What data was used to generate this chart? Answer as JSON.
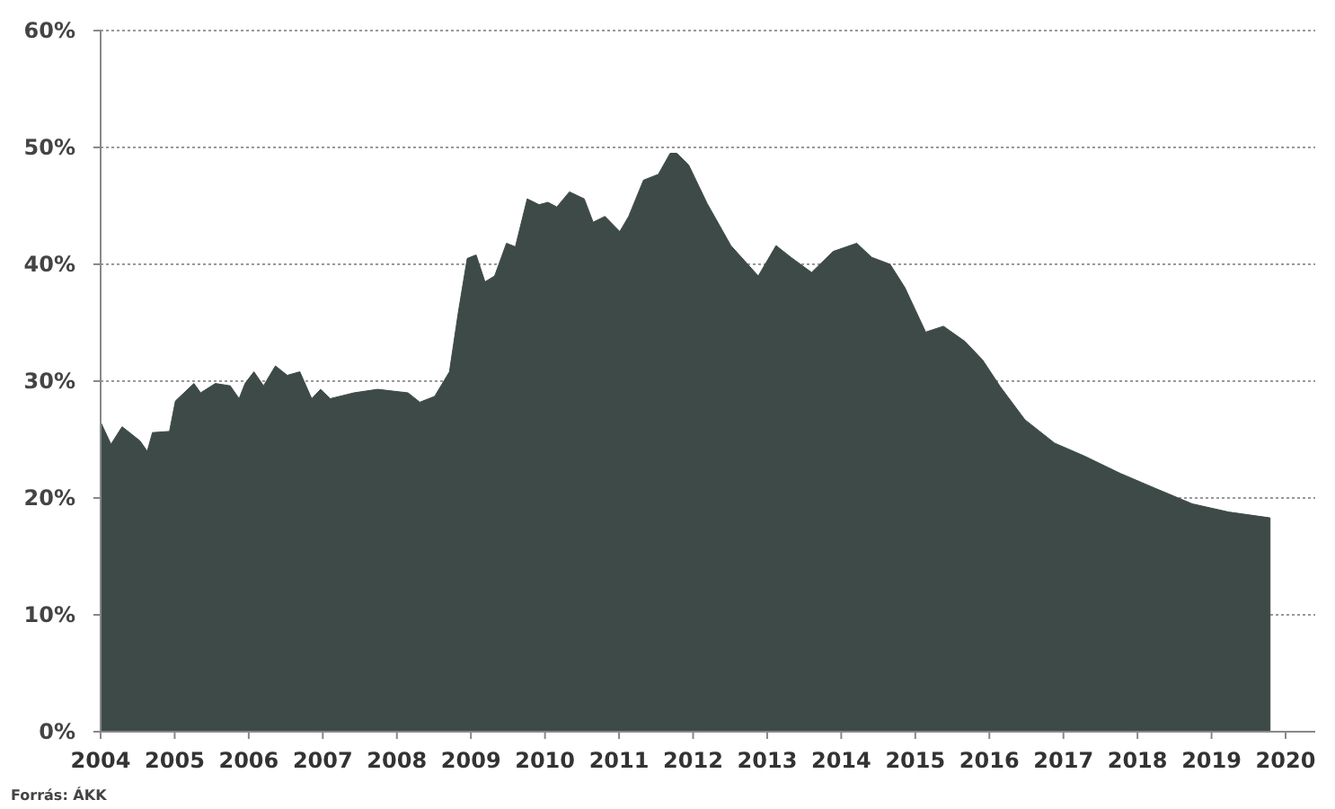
{
  "chart_data": {
    "type": "area",
    "x": [
      2004.0,
      2004.14,
      2004.29,
      2004.53,
      2004.63,
      2004.7,
      2004.93,
      2005.01,
      2005.26,
      2005.35,
      2005.55,
      2005.75,
      2005.87,
      2005.95,
      2006.07,
      2006.2,
      2006.36,
      2006.52,
      2006.69,
      2006.85,
      2006.97,
      2007.1,
      2007.42,
      2007.74,
      2008.15,
      2008.31,
      2008.51,
      2008.71,
      2008.83,
      2008.95,
      2009.07,
      2009.19,
      2009.32,
      2009.48,
      2009.6,
      2009.76,
      2009.92,
      2010.04,
      2010.16,
      2010.33,
      2010.53,
      2010.65,
      2010.81,
      2011.01,
      2011.13,
      2011.33,
      2011.53,
      2011.69,
      2011.78,
      2011.94,
      2012.19,
      2012.51,
      2012.88,
      2013.12,
      2013.32,
      2013.6,
      2013.89,
      2014.21,
      2014.41,
      2014.66,
      2014.86,
      2015.14,
      2015.38,
      2015.67,
      2015.91,
      2016.15,
      2016.48,
      2016.88,
      2017.28,
      2017.77,
      2018.25,
      2018.74,
      2019.23,
      2019.79
    ],
    "series": [
      {
        "color": "#3d4a48",
        "values": [
          26.5,
          24.6,
          26.1,
          24.9,
          24.0,
          25.6,
          25.7,
          28.3,
          29.8,
          29.0,
          29.8,
          29.6,
          28.5,
          29.8,
          30.8,
          29.6,
          31.3,
          30.5,
          30.8,
          28.5,
          29.3,
          28.5,
          29.0,
          29.3,
          29.0,
          28.2,
          28.7,
          30.8,
          35.9,
          40.5,
          40.8,
          38.5,
          39.0,
          41.8,
          41.5,
          45.6,
          45.1,
          45.3,
          44.9,
          46.2,
          45.6,
          43.6,
          44.1,
          42.8,
          44.1,
          47.2,
          47.7,
          49.5,
          49.5,
          48.5,
          45.2,
          41.6,
          39.0,
          41.6,
          40.6,
          39.3,
          41.1,
          41.8,
          40.6,
          40.0,
          38.0,
          34.2,
          34.7,
          33.4,
          31.8,
          29.5,
          26.7,
          24.7,
          23.6,
          22.1,
          20.8,
          19.5,
          18.8,
          18.3
        ]
      }
    ],
    "xlim": [
      2004,
      2020.4
    ],
    "xticks": [
      2004,
      2005,
      2006,
      2007,
      2008,
      2009,
      2010,
      2011,
      2012,
      2013,
      2014,
      2015,
      2016,
      2017,
      2018,
      2019,
      2020
    ],
    "ylim": [
      0,
      60
    ],
    "yticks": [
      {
        "value": 0,
        "label": "0%"
      },
      {
        "value": 10,
        "label": "10%"
      },
      {
        "value": 20,
        "label": "20%"
      },
      {
        "value": 30,
        "label": "30%"
      },
      {
        "value": 40,
        "label": "40%"
      },
      {
        "value": 50,
        "label": "50%"
      },
      {
        "value": 60,
        "label": "60%"
      }
    ],
    "grid": "y",
    "annotations": [
      "Forrás: ÁKK"
    ]
  }
}
